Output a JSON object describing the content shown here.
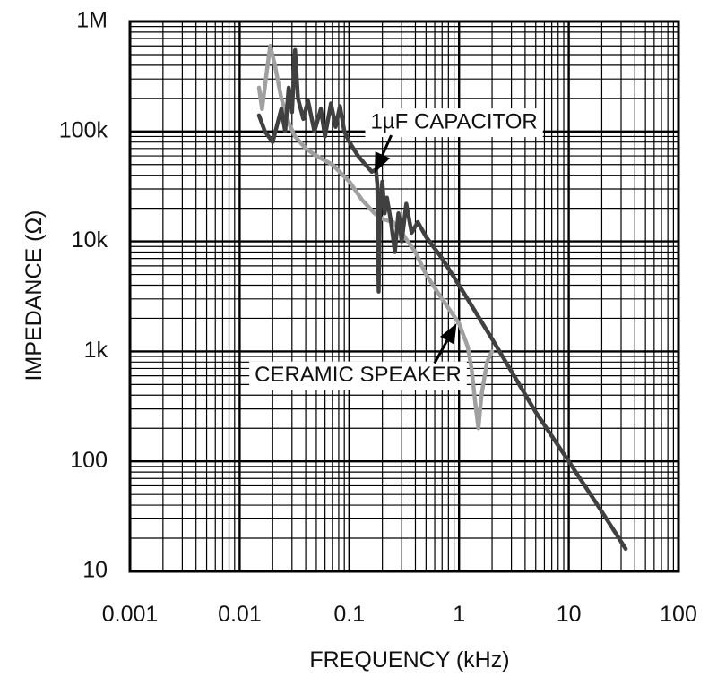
{
  "chart_data": {
    "type": "line",
    "title": "",
    "xlabel": "FREQUENCY (kHz)",
    "ylabel": "IMPEDANCE (Ω)",
    "x_scale": "log",
    "y_scale": "log",
    "xlim": [
      0.001,
      100
    ],
    "ylim": [
      10,
      1000000
    ],
    "grid": true,
    "x_ticks": [
      {
        "value": 0.001,
        "label": "0.001"
      },
      {
        "value": 0.01,
        "label": "0.01"
      },
      {
        "value": 0.1,
        "label": "0.1"
      },
      {
        "value": 1,
        "label": "1"
      },
      {
        "value": 10,
        "label": "10"
      },
      {
        "value": 100,
        "label": "100"
      }
    ],
    "y_ticks": [
      {
        "value": 10,
        "label": "10"
      },
      {
        "value": 100,
        "label": "100"
      },
      {
        "value": 1000,
        "label": "1k"
      },
      {
        "value": 10000,
        "label": "10k"
      },
      {
        "value": 100000,
        "label": "100k"
      },
      {
        "value": 1000000,
        "label": "1M"
      }
    ],
    "series": [
      {
        "name": "1µF CAPACITOR",
        "color": "#404040",
        "points": [
          [
            0.015,
            140000
          ],
          [
            0.017,
            100000
          ],
          [
            0.02,
            80000
          ],
          [
            0.024,
            160000
          ],
          [
            0.026,
            100000
          ],
          [
            0.028,
            250000
          ],
          [
            0.03,
            150000
          ],
          [
            0.032,
            550000
          ],
          [
            0.034,
            200000
          ],
          [
            0.038,
            130000
          ],
          [
            0.042,
            190000
          ],
          [
            0.048,
            100000
          ],
          [
            0.055,
            160000
          ],
          [
            0.06,
            90000
          ],
          [
            0.068,
            180000
          ],
          [
            0.075,
            110000
          ],
          [
            0.082,
            170000
          ],
          [
            0.09,
            100000
          ],
          [
            0.1,
            80000
          ],
          [
            0.12,
            60000
          ],
          [
            0.14,
            50000
          ],
          [
            0.16,
            43000
          ],
          [
            0.175,
            45000
          ],
          [
            0.18,
            33000
          ],
          [
            0.185,
            3500
          ],
          [
            0.19,
            20000
          ],
          [
            0.2,
            35000
          ],
          [
            0.21,
            18000
          ],
          [
            0.22,
            25000
          ],
          [
            0.24,
            15000
          ],
          [
            0.26,
            8000
          ],
          [
            0.28,
            18000
          ],
          [
            0.3,
            10000
          ],
          [
            0.33,
            22000
          ],
          [
            0.37,
            12000
          ],
          [
            0.42,
            15000
          ],
          [
            0.5,
            11000
          ],
          [
            0.7,
            7000
          ],
          [
            1,
            4000
          ],
          [
            2,
            1300
          ],
          [
            5,
            280
          ],
          [
            10,
            100
          ],
          [
            20,
            35
          ],
          [
            33,
            16
          ]
        ]
      },
      {
        "name": "CERAMIC SPEAKER",
        "color": "#a0a0a0",
        "points": [
          [
            0.015,
            250000
          ],
          [
            0.016,
            160000
          ],
          [
            0.018,
            400000
          ],
          [
            0.019,
            600000
          ],
          [
            0.021,
            400000
          ],
          [
            0.024,
            200000
          ],
          [
            0.028,
            120000
          ],
          [
            0.032,
            90000
          ],
          [
            0.04,
            70000
          ],
          [
            0.05,
            60000
          ],
          [
            0.07,
            50000
          ],
          [
            0.1,
            35000
          ],
          [
            0.13,
            24000
          ],
          [
            0.17,
            18000
          ],
          [
            0.2,
            16000
          ],
          [
            0.25,
            15000
          ],
          [
            0.3,
            12000
          ],
          [
            0.4,
            8000
          ],
          [
            0.5,
            5000
          ],
          [
            0.7,
            3000
          ],
          [
            1,
            1800
          ],
          [
            1.2,
            1100
          ],
          [
            1.3,
            700
          ],
          [
            1.4,
            350
          ],
          [
            1.5,
            200
          ],
          [
            1.6,
            400
          ],
          [
            1.8,
            800
          ],
          [
            2,
            1000
          ]
        ]
      }
    ],
    "annotations": [
      {
        "text": "1µF CAPACITOR",
        "x": 0.9,
        "y": 120000,
        "arrow_to": [
          0.17,
          42000
        ]
      },
      {
        "text": "CERAMIC SPEAKER",
        "x": 0.12,
        "y": 600,
        "arrow_to": [
          0.95,
          1800
        ]
      }
    ]
  }
}
